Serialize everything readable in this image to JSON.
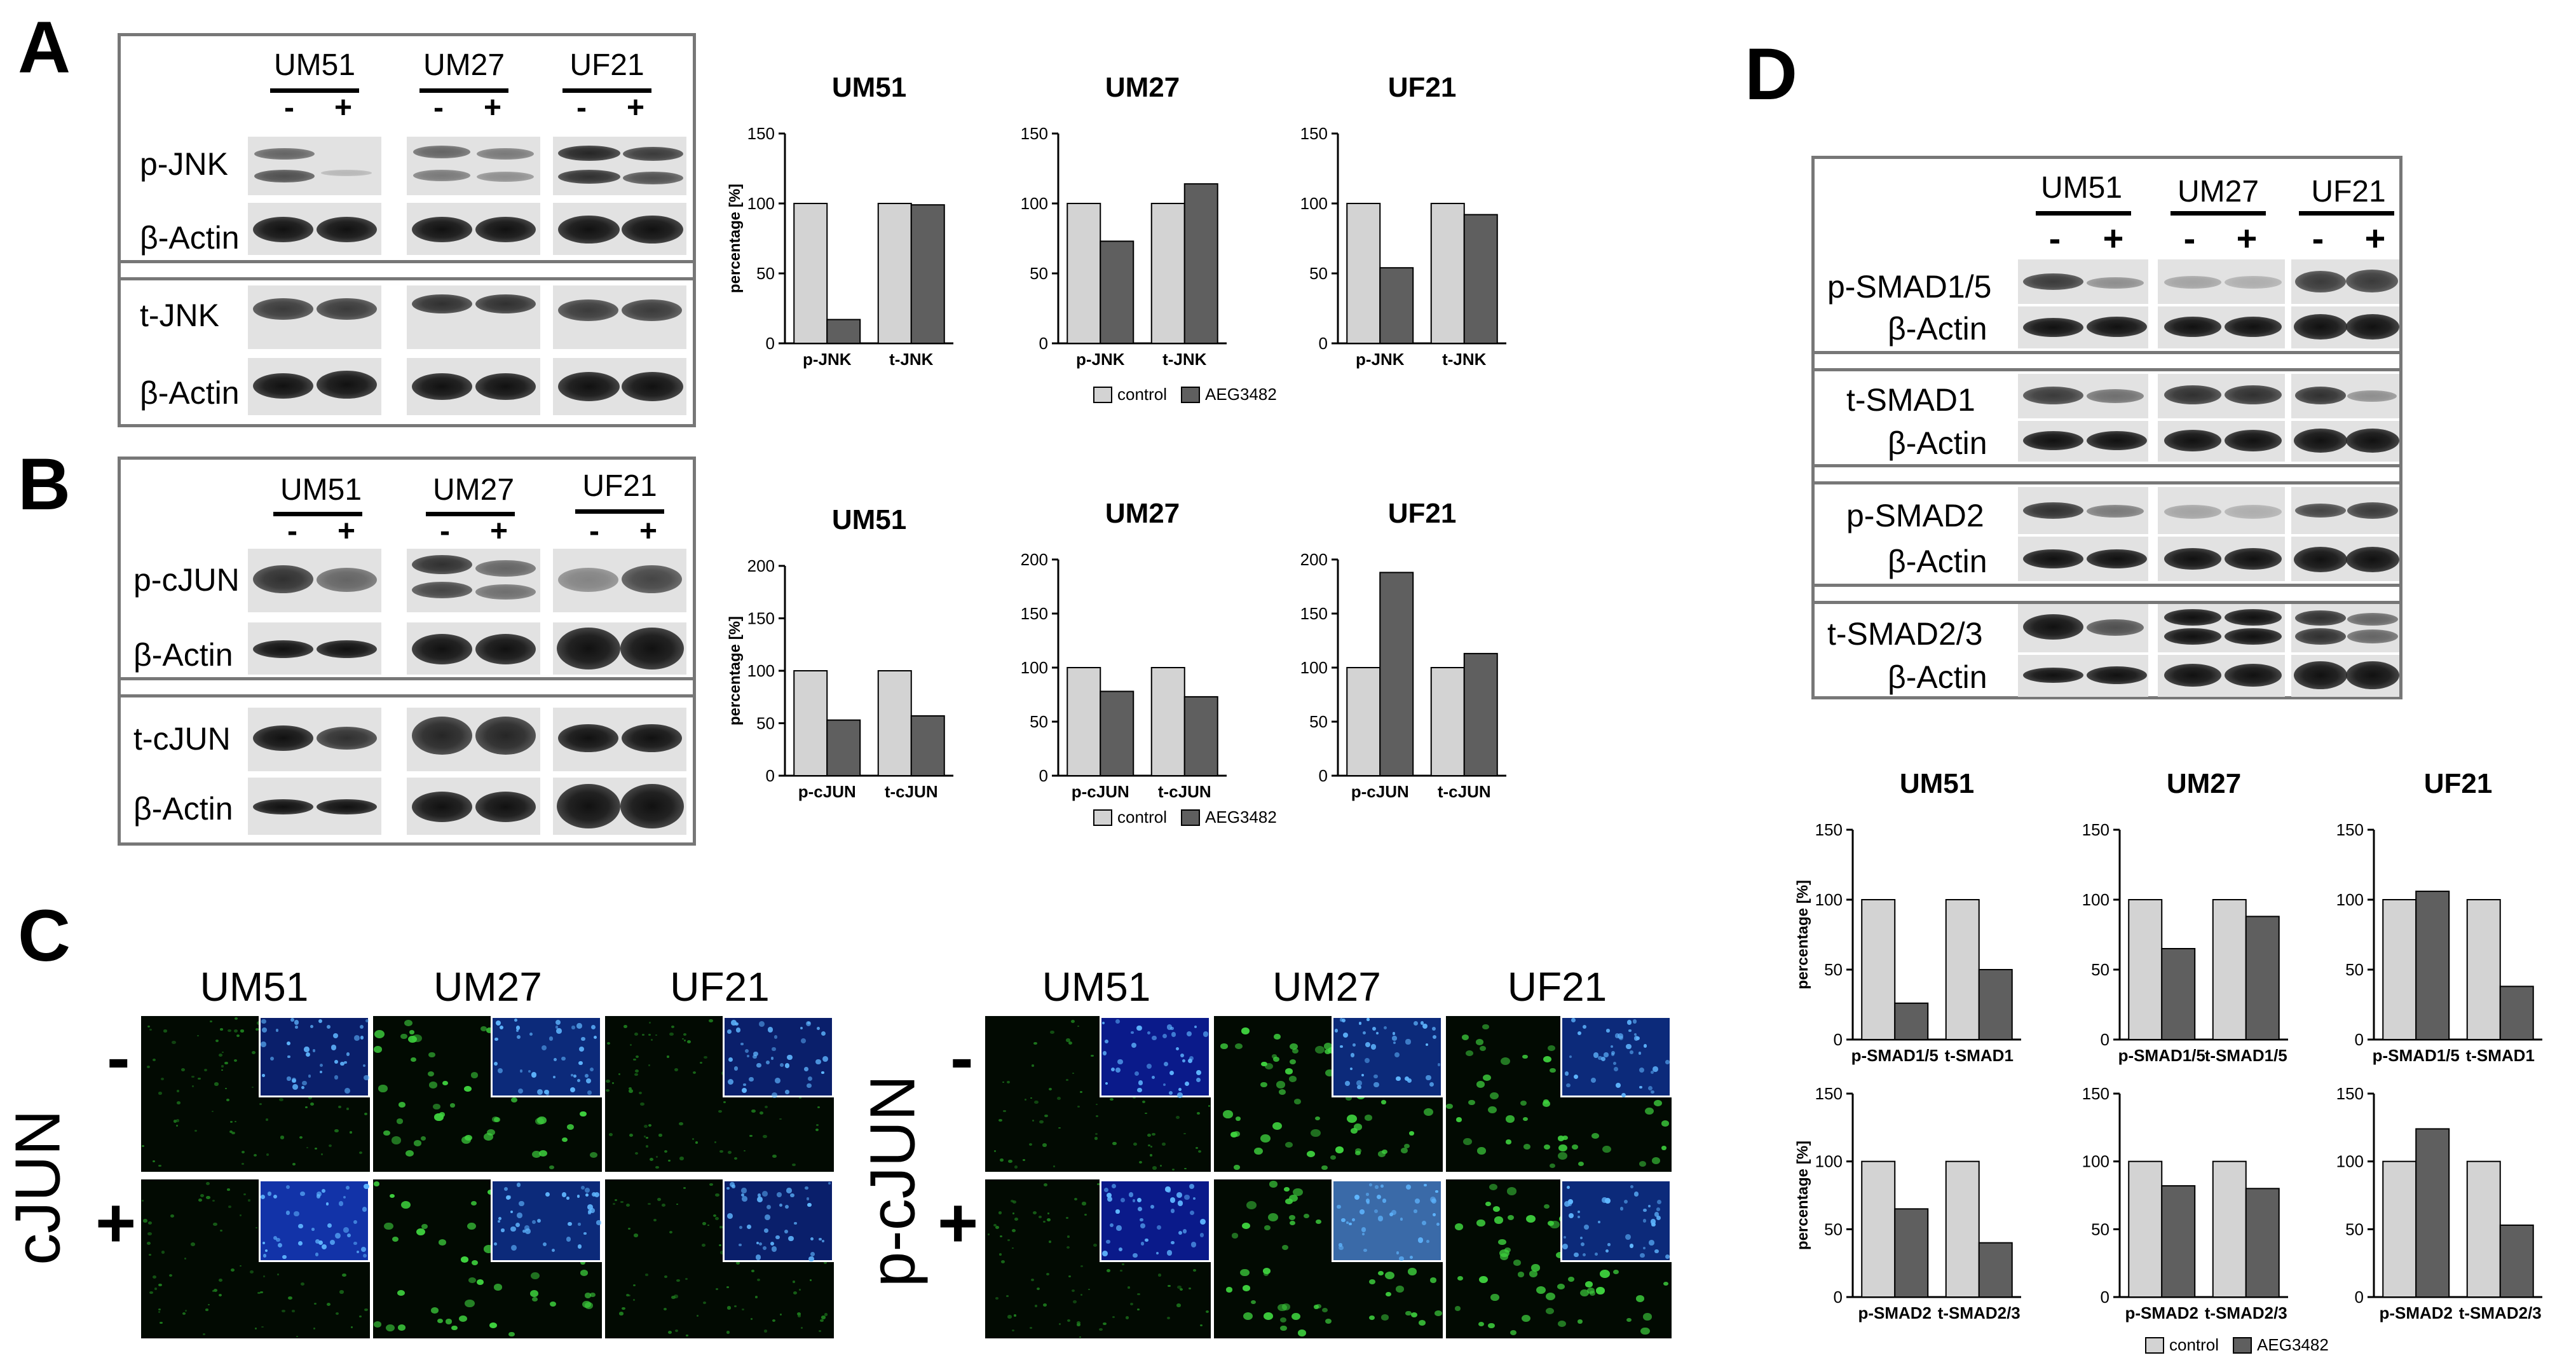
{
  "panels": {
    "a": "A",
    "b": "B",
    "c": "C",
    "d": "D"
  },
  "lines": {
    "l1": "UM51",
    "l2": "UM27",
    "l3": "UF21"
  },
  "treat": {
    "minus": "-",
    "plus": "+"
  },
  "blotA": {
    "rows": [
      "p-JNK",
      "β-Actin",
      "t-JNK",
      "β-Actin"
    ]
  },
  "blotB": {
    "rows": [
      "p-cJUN",
      "β-Actin",
      "t-cJUN",
      "β-Actin"
    ]
  },
  "blotD": {
    "rows": [
      "p-SMAD1/5",
      "β-Actin",
      "t-SMAD1",
      "β-Actin",
      "p-SMAD2",
      "β-Actin",
      "t-SMAD2/3",
      "β-Actin"
    ]
  },
  "panelC": {
    "left_label": "cJUN",
    "right_label": "p-cJUN"
  },
  "legend": {
    "control": "control",
    "treatment": "AEG3482",
    "control_color": "#d3d3d3",
    "treatment_color": "#5f5f5f"
  },
  "chart_data": [
    {
      "id": "A1",
      "type": "bar",
      "title": "UM51",
      "categories": [
        "p-JNK",
        "t-JNK"
      ],
      "ylabel": "percentage [%]",
      "ylim": [
        0,
        150
      ],
      "yticks": [
        0,
        50,
        100,
        150
      ],
      "series": [
        {
          "name": "control",
          "values": [
            100,
            100
          ]
        },
        {
          "name": "AEG3482",
          "values": [
            17,
            99
          ]
        }
      ]
    },
    {
      "id": "A2",
      "type": "bar",
      "title": "UM27",
      "categories": [
        "p-JNK",
        "t-JNK"
      ],
      "ylabel": "",
      "ylim": [
        0,
        150
      ],
      "yticks": [
        0,
        50,
        100,
        150
      ],
      "series": [
        {
          "name": "control",
          "values": [
            100,
            100
          ]
        },
        {
          "name": "AEG3482",
          "values": [
            73,
            114
          ]
        }
      ]
    },
    {
      "id": "A3",
      "type": "bar",
      "title": "UF21",
      "categories": [
        "p-JNK",
        "t-JNK"
      ],
      "ylabel": "",
      "ylim": [
        0,
        150
      ],
      "yticks": [
        0,
        50,
        100,
        150
      ],
      "series": [
        {
          "name": "control",
          "values": [
            100,
            100
          ]
        },
        {
          "name": "AEG3482",
          "values": [
            54,
            92
          ]
        }
      ]
    },
    {
      "id": "B1",
      "type": "bar",
      "title": "UM51",
      "categories": [
        "p-cJUN",
        "t-cJUN"
      ],
      "ylabel": "percentage [%]",
      "ylim": [
        0,
        200
      ],
      "yticks": [
        0,
        50,
        100,
        150,
        200
      ],
      "series": [
        {
          "name": "control",
          "values": [
            100,
            100
          ]
        },
        {
          "name": "AEG3482",
          "values": [
            53,
            57
          ]
        }
      ]
    },
    {
      "id": "B2",
      "type": "bar",
      "title": "UM27",
      "categories": [
        "p-cJUN",
        "t-cJUN"
      ],
      "ylabel": "",
      "ylim": [
        0,
        200
      ],
      "yticks": [
        0,
        50,
        100,
        150,
        200
      ],
      "series": [
        {
          "name": "control",
          "values": [
            100,
            100
          ]
        },
        {
          "name": "AEG3482",
          "values": [
            78,
            73
          ]
        }
      ]
    },
    {
      "id": "B3",
      "type": "bar",
      "title": "UF21",
      "categories": [
        "p-cJUN",
        "t-cJUN"
      ],
      "ylabel": "",
      "ylim": [
        0,
        200
      ],
      "yticks": [
        0,
        50,
        100,
        150,
        200
      ],
      "series": [
        {
          "name": "control",
          "values": [
            100,
            100
          ]
        },
        {
          "name": "AEG3482",
          "values": [
            188,
            113
          ]
        }
      ]
    },
    {
      "id": "D1",
      "type": "bar",
      "title": "UM51",
      "categories": [
        "p-SMAD1/5",
        "t-SMAD1"
      ],
      "ylabel": "percentage [%]",
      "ylim": [
        0,
        150
      ],
      "yticks": [
        0,
        50,
        100,
        150
      ],
      "series": [
        {
          "name": "control",
          "values": [
            100,
            100
          ]
        },
        {
          "name": "AEG3482",
          "values": [
            26,
            50
          ]
        }
      ]
    },
    {
      "id": "D2",
      "type": "bar",
      "title": "UM27",
      "categories": [
        "p-SMAD1/5",
        "t-SMAD1/5"
      ],
      "ylabel": "",
      "ylim": [
        0,
        150
      ],
      "yticks": [
        0,
        50,
        100,
        150
      ],
      "series": [
        {
          "name": "control",
          "values": [
            100,
            100
          ]
        },
        {
          "name": "AEG3482",
          "values": [
            65,
            88
          ]
        }
      ]
    },
    {
      "id": "D3",
      "type": "bar",
      "title": "UF21",
      "categories": [
        "p-SMAD1/5",
        "t-SMAD1"
      ],
      "ylabel": "",
      "ylim": [
        0,
        150
      ],
      "yticks": [
        0,
        50,
        100,
        150
      ],
      "series": [
        {
          "name": "control",
          "values": [
            100,
            100
          ]
        },
        {
          "name": "AEG3482",
          "values": [
            106,
            38
          ]
        }
      ]
    },
    {
      "id": "D4",
      "type": "bar",
      "title": "",
      "categories": [
        "p-SMAD2",
        "t-SMAD2/3"
      ],
      "ylabel": "percentage [%]",
      "ylim": [
        0,
        150
      ],
      "yticks": [
        0,
        50,
        100,
        150
      ],
      "series": [
        {
          "name": "control",
          "values": [
            100,
            100
          ]
        },
        {
          "name": "AEG3482",
          "values": [
            65,
            40
          ]
        }
      ]
    },
    {
      "id": "D5",
      "type": "bar",
      "title": "",
      "categories": [
        "p-SMAD2",
        "t-SMAD2/3"
      ],
      "ylabel": "",
      "ylim": [
        0,
        150
      ],
      "yticks": [
        0,
        50,
        100,
        150
      ],
      "series": [
        {
          "name": "control",
          "values": [
            100,
            100
          ]
        },
        {
          "name": "AEG3482",
          "values": [
            82,
            80
          ]
        }
      ]
    },
    {
      "id": "D6",
      "type": "bar",
      "title": "",
      "categories": [
        "p-SMAD2",
        "t-SMAD2/3"
      ],
      "ylabel": "",
      "ylim": [
        0,
        150
      ],
      "yticks": [
        0,
        50,
        100,
        150
      ],
      "series": [
        {
          "name": "control",
          "values": [
            100,
            100
          ]
        },
        {
          "name": "AEG3482",
          "values": [
            124,
            53
          ]
        }
      ]
    }
  ]
}
